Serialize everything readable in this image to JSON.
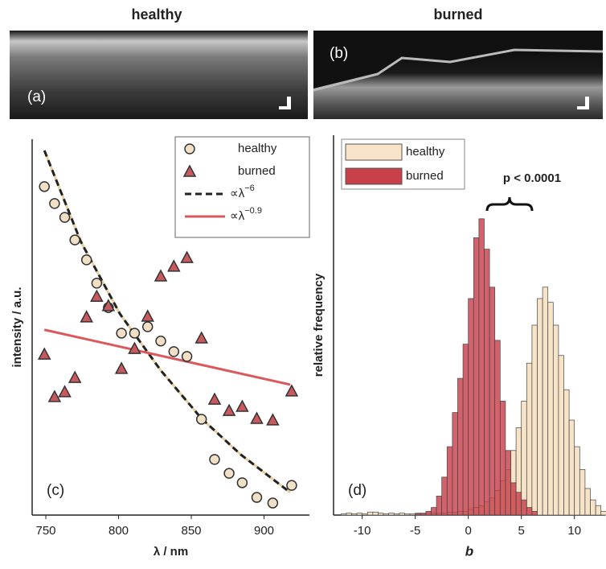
{
  "header": {
    "left_title": "healthy",
    "right_title": "burned"
  },
  "images": [
    {
      "label": "(a)"
    },
    {
      "label": "(b)"
    }
  ],
  "chart_data": [
    {
      "type": "scatter",
      "panel_label": "(c)",
      "xlabel": "λ / nm",
      "ylabel": "intensity / a.u.",
      "xlim": [
        740.6,
        931.2
      ],
      "xticks": [
        750,
        800,
        850,
        900
      ],
      "ylim": [
        0,
        100
      ],
      "legend": "upper right",
      "series": [
        {
          "name": "healthy",
          "kind": "circle",
          "color": "#f2e0c6",
          "x": [
            749,
            756,
            763,
            770,
            778,
            785,
            793,
            802,
            811,
            820,
            829,
            838,
            847,
            857,
            866,
            876,
            885,
            895,
            906,
            919
          ],
          "values": [
            87.4,
            82.9,
            79.2,
            73.2,
            67.9,
            61.7,
            55.2,
            48.4,
            48.4,
            50.1,
            46.3,
            43.5,
            42.2,
            25.5,
            14.8,
            11.1,
            8.6,
            4.7,
            3.2,
            7.9
          ]
        },
        {
          "name": "burned",
          "kind": "triangle",
          "color": "#c85a5e",
          "x": [
            749,
            756,
            763,
            770,
            778,
            785,
            793,
            802,
            811,
            820,
            829,
            838,
            847,
            857,
            866,
            876,
            885,
            895,
            906,
            919
          ],
          "values": [
            42.8,
            31.5,
            32.8,
            36.6,
            52.7,
            58.2,
            55.7,
            39.0,
            44.3,
            52.9,
            63.6,
            66.2,
            68.5,
            47.1,
            30.8,
            27.8,
            28.9,
            25.7,
            25.3,
            33.0
          ]
        },
        {
          "name": "∝λ",
          "superscript": "−6",
          "kind": "dashed",
          "color": "#222222",
          "x": [
            749,
            774,
            801,
            829,
            857,
            884,
            918
          ],
          "values": [
            97,
            72.8,
            53.5,
            38.5,
            25.7,
            16.1,
            6
          ]
        },
        {
          "name": "∝λ",
          "superscript": "−0.9",
          "kind": "solid",
          "color": "#d9595c",
          "x": [
            749,
            918
          ],
          "values": [
            49.3,
            34.7
          ]
        }
      ]
    },
    {
      "type": "histogram",
      "panel_label": "(d)",
      "xlabel": "b",
      "ylabel": "relative frequency",
      "annotation": "p < 0.0001",
      "xlim": [
        -12.7,
        12.9
      ],
      "xticks": [
        -10,
        -5,
        0,
        5,
        10
      ],
      "ylim": [
        0,
        100
      ],
      "legend": "upper left",
      "bins": [
        -12,
        -11.5,
        -11,
        -10.5,
        -10,
        -9.5,
        -9,
        -8.5,
        -8,
        -7.5,
        -7,
        -6.5,
        -6,
        -5.5,
        -5,
        -4.5,
        -4,
        -3.5,
        -3,
        -2.5,
        -2,
        -1.5,
        -1,
        -0.5,
        0,
        0.5,
        1,
        1.5,
        2,
        2.5,
        3,
        3.5,
        4,
        4.5,
        5,
        5.5,
        6,
        6.5,
        7,
        7.5,
        8,
        8.5,
        9,
        9.5,
        10,
        10.5,
        11,
        11.5,
        12,
        12.5,
        13
      ],
      "series": [
        {
          "name": "healthy",
          "color": "#f7e4c8",
          "values": [
            0.3,
            0.5,
            0.3,
            0.5,
            0.3,
            0.8,
            0.8,
            0.5,
            0.3,
            0.5,
            0.3,
            0.5,
            0.3,
            0.3,
            0.5,
            0.3,
            0.5,
            0.5,
            0.5,
            0.5,
            0.8,
            0.8,
            1,
            1,
            1.5,
            2,
            2.5,
            3.5,
            4.5,
            6.5,
            9,
            12,
            17,
            23,
            30,
            40,
            50,
            57,
            60,
            56,
            50,
            42,
            33,
            25,
            18,
            12,
            7,
            4,
            2.5,
            1
          ]
        },
        {
          "name": "burned",
          "color": "#c8404a",
          "values": [
            0,
            0,
            0,
            0,
            0,
            0,
            0,
            0,
            0,
            0,
            0,
            0,
            0,
            0,
            0.3,
            0.5,
            1,
            2,
            5,
            10,
            18,
            27,
            36,
            45,
            57,
            73,
            78,
            70,
            60,
            46,
            30,
            17,
            8.5,
            6,
            4,
            2,
            1,
            0,
            0,
            0,
            0,
            0,
            0,
            0,
            0,
            0,
            0,
            0,
            0,
            0
          ]
        }
      ]
    }
  ]
}
